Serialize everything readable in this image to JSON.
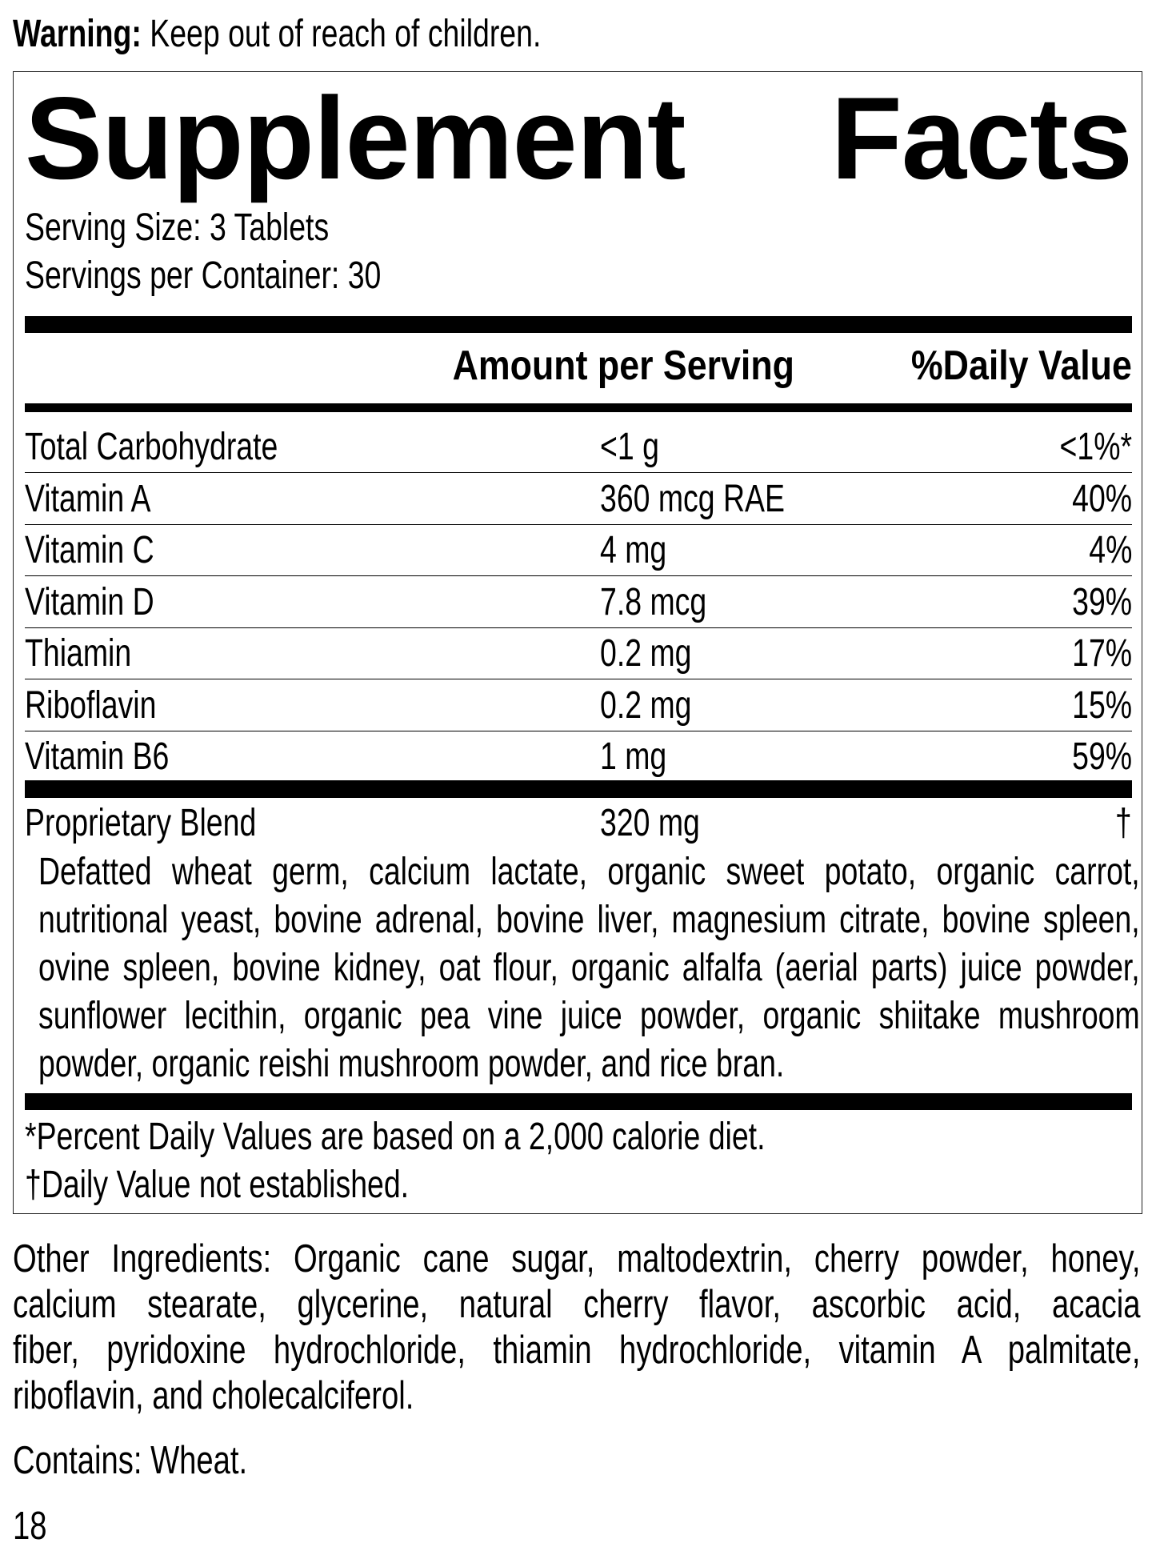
{
  "warning": {
    "label": "Warning:",
    "text": "Keep out of reach of children."
  },
  "title": {
    "word1": "Supplement",
    "word2": "Facts"
  },
  "serving_size": "Serving Size: 3 Tablets",
  "servings_per_container": "Servings per Container: 30",
  "header": {
    "amount": "Amount per Serving",
    "dv": "%Daily Value"
  },
  "nutrients": [
    {
      "name": "Total Carbohydrate",
      "amount": "<1 g",
      "dv": "<1%*"
    },
    {
      "name": "Vitamin A",
      "amount": "360 mcg RAE",
      "dv": "40%"
    },
    {
      "name": "Vitamin C",
      "amount": "4 mg",
      "dv": "4%"
    },
    {
      "name": "Vitamin D",
      "amount": "7.8 mcg",
      "dv": "39%"
    },
    {
      "name": "Thiamin",
      "amount": "0.2 mg",
      "dv": "17%"
    },
    {
      "name": "Riboflavin",
      "amount": "0.2 mg",
      "dv": "15%"
    },
    {
      "name": "Vitamin B6",
      "amount": "1 mg",
      "dv": "59%"
    }
  ],
  "blend": {
    "name": "Proprietary Blend",
    "amount": "320 mg",
    "dv": "†",
    "ingredients_lines": [
      "Defatted wheat germ, calcium lactate, organic sweet potato, organic carrot,",
      "nutritional yeast, bovine adrenal, bovine liver, magnesium citrate, bovine spleen,",
      "ovine spleen, bovine kidney, oat flour, organic alfalfa (aerial parts) juice powder,",
      "sunflower lecithin, organic pea vine juice powder, organic shiitake mushroom",
      "powder, organic reishi mushroom powder, and rice bran."
    ]
  },
  "footnotes": [
    "*Percent Daily Values are based on a 2,000 calorie diet.",
    "†Daily Value not established."
  ],
  "other_ingredients_lines": [
    "Other Ingredients: Organic cane sugar, maltodextrin, cherry powder, honey,",
    "calcium stearate, glycerine, natural cherry flavor, ascorbic acid, acacia",
    "fiber, pyridoxine hydrochloride, thiamin hydrochloride, vitamin A palmitate,",
    "riboflavin, and cholecalciferol."
  ],
  "contains": "Contains: Wheat.",
  "page_number": "18"
}
